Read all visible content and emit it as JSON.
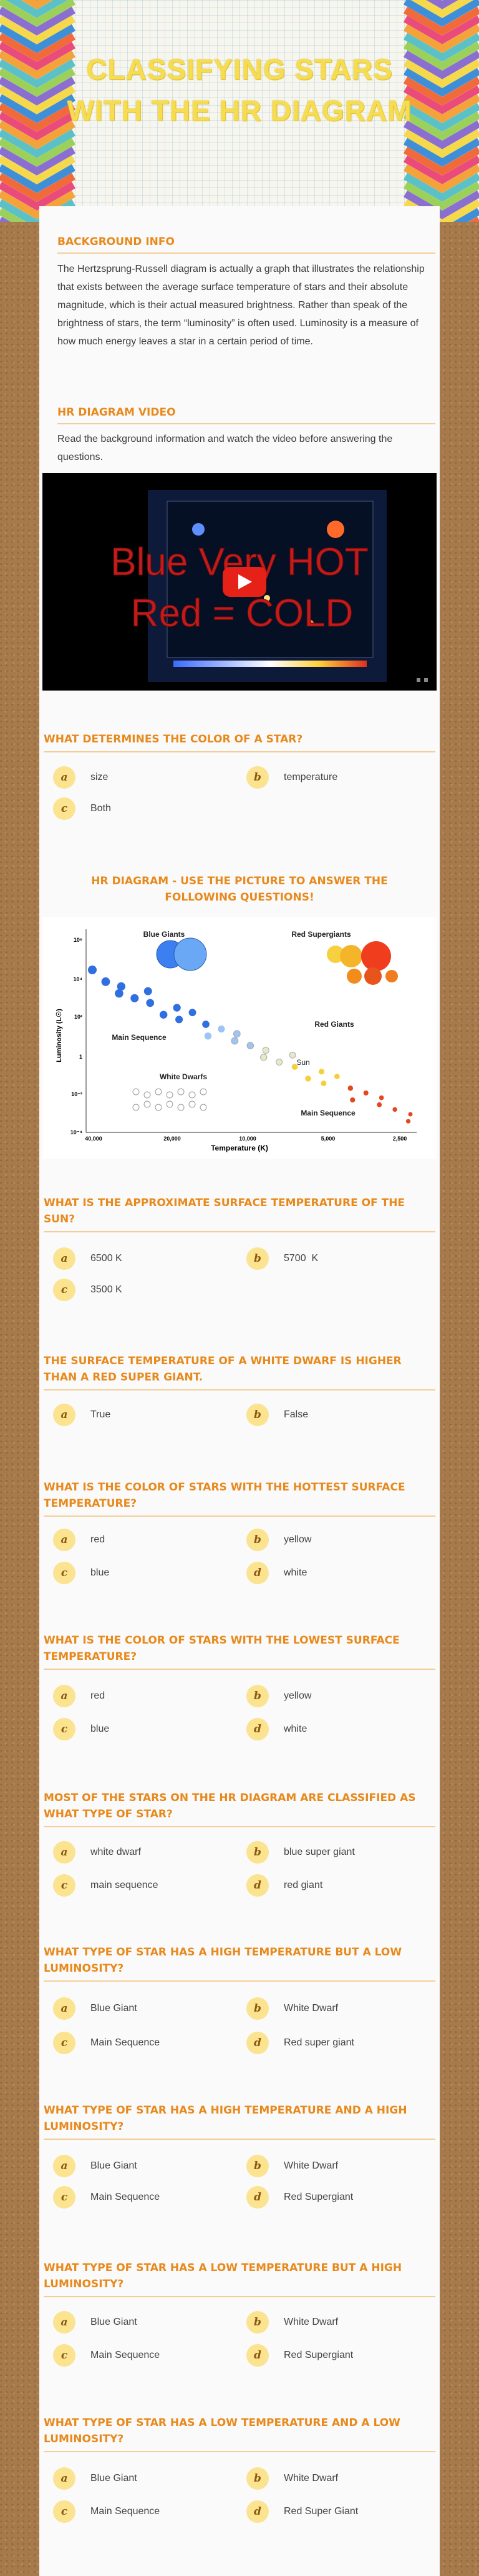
{
  "header": {
    "title": "CLASSIFYING STARS WITH THE HR DIAGRAM"
  },
  "background": {
    "heading": "Background Info",
    "text": "The Hertzsprung-Russell diagram is actually a graph that illustrates the relationship that exists between the average surface temperature of stars and their absolute magnitude, which is their actual measured brightness. Rather than speak of the brightness of stars, the term “luminosity” is often used. Luminosity is a measure of how much energy leaves a star in a certain period of time."
  },
  "video": {
    "heading": "HR Diagram Video",
    "instructions": "Read the background information and watch the video before answering the questions.",
    "thumbnail_lines": [
      "Blue Very HOT",
      "Red = COLD"
    ]
  },
  "diagram": {
    "heading": "HR DIAGRAM - USE THE PICTURE TO ANSWER THE FOLLOWING QUESTIONS!",
    "labels": [
      "Blue Giants",
      "Red Supergiants",
      "Main Sequence",
      "Red Giants",
      "White Dwarfs",
      "Sun",
      "Main Sequence"
    ],
    "y_axis": "Luminosity (L☉)",
    "x_axis": "Temperature (K)",
    "x_ticks": [
      "40,000",
      "20,000",
      "10,000",
      "5,000",
      "2,500"
    ],
    "y_ticks": [
      "10⁶",
      "10⁴",
      "10²",
      "1",
      "10⁻²",
      "10⁻⁴"
    ]
  },
  "questions": [
    {
      "question": "WHAT DETERMINES THE COLOR OF A STAR?",
      "options": [
        {
          "letter": "a",
          "text": "size"
        },
        {
          "letter": "b",
          "text": "temperature"
        },
        {
          "letter": "c",
          "text": "Both"
        }
      ]
    },
    {
      "question": "WHAT IS THE APPROXIMATE SURFACE TEMPERATURE OF THE SUN?",
      "options": [
        {
          "letter": "a",
          "text": "6500 K"
        },
        {
          "letter": "b",
          "text": "5700  K"
        },
        {
          "letter": "c",
          "text": "3500 K"
        }
      ]
    },
    {
      "question": "THE SURFACE TEMPERATURE OF A WHITE DWARF IS HIGHER THAN A RED SUPER GIANT.",
      "options": [
        {
          "letter": "a",
          "text": "True"
        },
        {
          "letter": "b",
          "text": "False"
        }
      ]
    },
    {
      "question": "WHAT IS THE COLOR OF STARS WITH THE HOTTEST SURFACE TEMPERATURE?",
      "options": [
        {
          "letter": "a",
          "text": "red"
        },
        {
          "letter": "b",
          "text": "yellow"
        },
        {
          "letter": "c",
          "text": "blue"
        },
        {
          "letter": "d",
          "text": "white"
        }
      ]
    },
    {
      "question": "WHAT IS THE COLOR OF STARS WITH THE LOWEST SURFACE TEMPERATURE?",
      "options": [
        {
          "letter": "a",
          "text": "red"
        },
        {
          "letter": "b",
          "text": "yellow"
        },
        {
          "letter": "c",
          "text": "blue"
        },
        {
          "letter": "d",
          "text": "white"
        }
      ]
    },
    {
      "question": "MOST OF THE STARS ON THE HR DIAGRAM ARE CLASSIFIED AS WHAT TYPE OF STAR?",
      "options": [
        {
          "letter": "a",
          "text": "white dwarf"
        },
        {
          "letter": "b",
          "text": "blue super giant"
        },
        {
          "letter": "c",
          "text": "main sequence"
        },
        {
          "letter": "d",
          "text": "red giant"
        }
      ]
    },
    {
      "question": "WHAT TYPE OF STAR HAS A HIGH TEMPERATURE BUT A LOW LUMINOSITY?",
      "options": [
        {
          "letter": "a",
          "text": "Blue Giant"
        },
        {
          "letter": "b",
          "text": "White Dwarf"
        },
        {
          "letter": "c",
          "text": "Main Sequence"
        },
        {
          "letter": "d",
          "text": "Red super giant"
        }
      ]
    },
    {
      "question": "WHAT TYPE OF STAR HAS A HIGH TEMPERATURE AND A HIGH LUMINOSITY?",
      "options": [
        {
          "letter": "a",
          "text": "Blue Giant"
        },
        {
          "letter": "b",
          "text": "White Dwarf"
        },
        {
          "letter": "c",
          "text": "Main Sequence"
        },
        {
          "letter": "d",
          "text": "Red Supergiant"
        }
      ]
    },
    {
      "question": "WHAT TYPE OF STAR HAS A LOW TEMPERATURE BUT A HIGH LUMINOSITY?",
      "options": [
        {
          "letter": "a",
          "text": "Blue Giant"
        },
        {
          "letter": "b",
          "text": "White Dwarf"
        },
        {
          "letter": "c",
          "text": "Main Sequence"
        },
        {
          "letter": "d",
          "text": "Red Supergiant"
        }
      ]
    },
    {
      "question": "WHAT TYPE OF STAR HAS A LOW TEMPERATURE AND A LOW LUMINOSITY?",
      "options": [
        {
          "letter": "a",
          "text": "Blue Giant"
        },
        {
          "letter": "b",
          "text": "White Dwarf"
        },
        {
          "letter": "c",
          "text": "Main Sequence"
        },
        {
          "letter": "d",
          "text": "Red Super Giant"
        }
      ]
    }
  ]
}
